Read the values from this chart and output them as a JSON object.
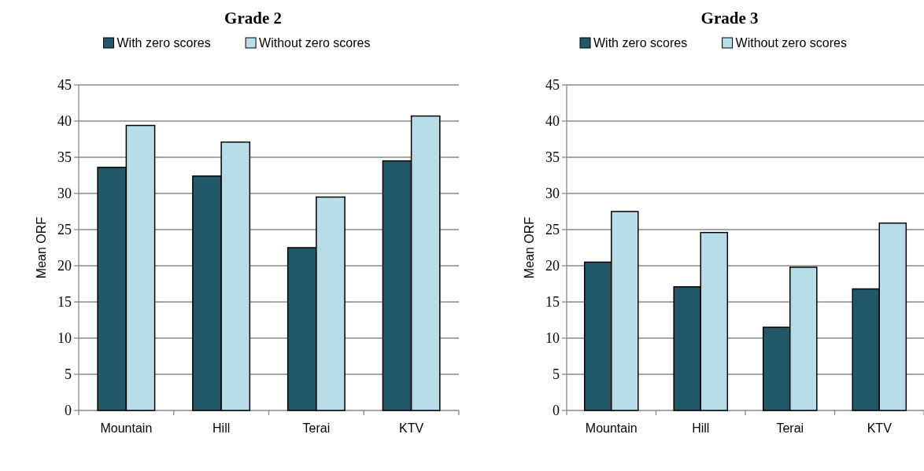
{
  "chart_data": [
    {
      "type": "bar",
      "title": "Grade 2",
      "ylabel": "Mean ORF",
      "categories": [
        "Mountain",
        "Hill",
        "Terai",
        "KTV"
      ],
      "series": [
        {
          "name": "With zero scores",
          "color": "#215968",
          "values": [
            33.6,
            32.4,
            22.5,
            34.5
          ]
        },
        {
          "name": "Without zero scores",
          "color": "#b7dde8",
          "values": [
            39.4,
            37.1,
            29.5,
            40.7
          ]
        }
      ],
      "ylim": [
        0,
        45
      ],
      "yticks": [
        0,
        5,
        10,
        15,
        20,
        25,
        30,
        35,
        40,
        45
      ],
      "grid": "y",
      "legend": "top"
    },
    {
      "type": "bar",
      "title": "Grade 3",
      "ylabel": "Mean ORF",
      "categories": [
        "Mountain",
        "Hill",
        "Terai",
        "KTV"
      ],
      "series": [
        {
          "name": "With zero scores",
          "color": "#215968",
          "values": [
            20.5,
            17.1,
            11.5,
            16.8
          ]
        },
        {
          "name": "Without zero scores",
          "color": "#b7dde8",
          "values": [
            27.5,
            24.6,
            19.8,
            25.9
          ]
        }
      ],
      "ylim": [
        0,
        45
      ],
      "yticks": [
        0,
        5,
        10,
        15,
        20,
        25,
        30,
        35,
        40,
        45
      ],
      "grid": "y",
      "legend": "top"
    }
  ]
}
